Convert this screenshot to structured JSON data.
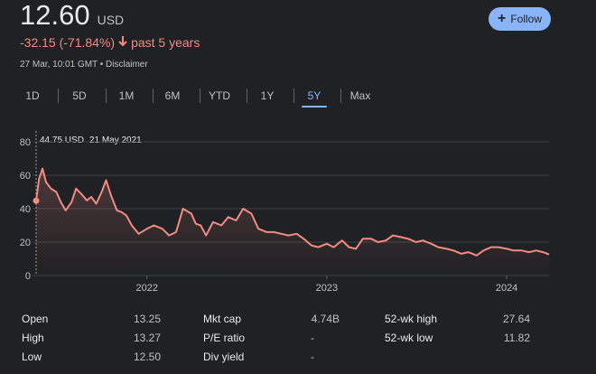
{
  "quote": {
    "price": "12.60",
    "currency": "USD",
    "change": "-32.15 (-71.84%)",
    "change_period": "past 5 years",
    "timestamp": "27 Mar, 10:01 GMT",
    "disclaimer": "Disclaimer",
    "follow_label": "Follow"
  },
  "tabs": [
    "1D",
    "5D",
    "1M",
    "6M",
    "YTD",
    "1Y",
    "5Y",
    "Max"
  ],
  "active_tab": "5Y",
  "tooltip": {
    "value": "44.75 USD",
    "date": "21 May 2021"
  },
  "chart_data": {
    "type": "line",
    "color": "#f28b82",
    "ylim": [
      0,
      80
    ],
    "yticks": [
      "0",
      "20",
      "40",
      "60",
      "80"
    ],
    "xticks": [
      "2022",
      "2023",
      "2024"
    ],
    "grid": true,
    "x": [
      "2021-05-21",
      "2021-05-27",
      "2021-06-03",
      "2021-06-10",
      "2021-06-20",
      "2021-07-01",
      "2021-07-10",
      "2021-07-20",
      "2021-08-01",
      "2021-08-10",
      "2021-08-20",
      "2021-09-01",
      "2021-09-10",
      "2021-09-20",
      "2021-10-01",
      "2021-10-10",
      "2021-10-20",
      "2021-11-01",
      "2021-11-10",
      "2021-11-20",
      "2021-12-01",
      "2021-12-15",
      "2022-01-01",
      "2022-01-15",
      "2022-02-01",
      "2022-02-15",
      "2022-03-01",
      "2022-03-15",
      "2022-04-01",
      "2022-04-10",
      "2022-04-20",
      "2022-05-01",
      "2022-05-15",
      "2022-06-01",
      "2022-06-15",
      "2022-07-01",
      "2022-07-15",
      "2022-08-01",
      "2022-08-15",
      "2022-09-01",
      "2022-09-15",
      "2022-10-01",
      "2022-10-15",
      "2022-11-01",
      "2022-11-15",
      "2022-12-01",
      "2022-12-15",
      "2023-01-01",
      "2023-01-15",
      "2023-02-01",
      "2023-02-15",
      "2023-03-01",
      "2023-03-15",
      "2023-04-01",
      "2023-04-15",
      "2023-05-01",
      "2023-05-15",
      "2023-06-01",
      "2023-06-15",
      "2023-07-01",
      "2023-07-15",
      "2023-08-01",
      "2023-08-15",
      "2023-09-01",
      "2023-09-15",
      "2023-10-01",
      "2023-10-15",
      "2023-11-01",
      "2023-11-15",
      "2023-12-01",
      "2023-12-15",
      "2024-01-01",
      "2024-01-15",
      "2024-02-01",
      "2024-02-15",
      "2024-03-01",
      "2024-03-15",
      "2024-03-27"
    ],
    "values": [
      44.75,
      58,
      64,
      56,
      52,
      50,
      44,
      39,
      44,
      52,
      49,
      45,
      47,
      43,
      50,
      57,
      48,
      39,
      38,
      36,
      30,
      25,
      28,
      30,
      28,
      24,
      26,
      40,
      37,
      31,
      30,
      24,
      32,
      30,
      35,
      33,
      40,
      37,
      28,
      26,
      26,
      25,
      24,
      25,
      22,
      18,
      17,
      19,
      17,
      21,
      17,
      16,
      22,
      22,
      20,
      21,
      24,
      23,
      22,
      20,
      21,
      19,
      17,
      16,
      15,
      13,
      14,
      12,
      15,
      17,
      17,
      16,
      15,
      15,
      14,
      15,
      14,
      12.6
    ]
  },
  "stats": {
    "col1": [
      {
        "label": "Open",
        "value": "13.25"
      },
      {
        "label": "High",
        "value": "13.27"
      },
      {
        "label": "Low",
        "value": "12.50"
      }
    ],
    "col2": [
      {
        "label": "Mkt cap",
        "value": "4.74B"
      },
      {
        "label": "P/E ratio",
        "value": "-"
      },
      {
        "label": "Div yield",
        "value": "-"
      }
    ],
    "col3": [
      {
        "label": "52-wk high",
        "value": "27.64"
      },
      {
        "label": "52-wk low",
        "value": "11.82"
      }
    ]
  }
}
